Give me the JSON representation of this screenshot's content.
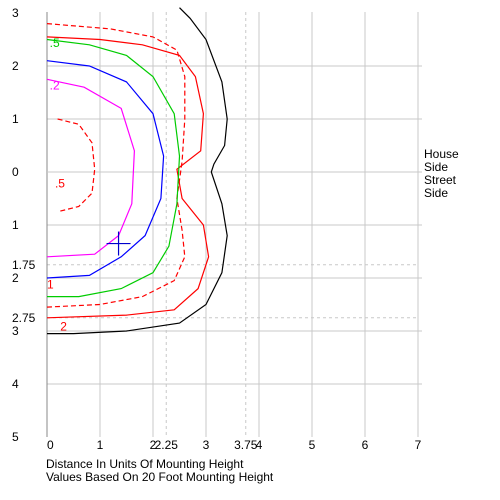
{
  "chart_data": {
    "type": "line",
    "title": "",
    "xlabel": "Distance In Units Of Mounting Height",
    "footnote": "Values Based On 20 Foot Mounting Height",
    "xlim": [
      0,
      7
    ],
    "ylim_top": 3,
    "ylim_bottom": 5,
    "x_ticks": [
      {
        "value": 0,
        "label": "0"
      },
      {
        "value": 1,
        "label": "1"
      },
      {
        "value": 2,
        "label": "2"
      },
      {
        "value": 2.25,
        "label": "2.25"
      },
      {
        "value": 3,
        "label": "3"
      },
      {
        "value": 3.75,
        "label": "3.75"
      },
      {
        "value": 4,
        "label": "4"
      },
      {
        "value": 5,
        "label": "5"
      },
      {
        "value": 6,
        "label": "6"
      },
      {
        "value": 7,
        "label": "7"
      }
    ],
    "y_ticks": [
      {
        "value": 3,
        "label": "3"
      },
      {
        "value": 2,
        "label": "2"
      },
      {
        "value": 1,
        "label": "1"
      },
      {
        "value": 0,
        "label": "0"
      },
      {
        "value": -1,
        "label": "1"
      },
      {
        "value": -1.75,
        "label": "1.75"
      },
      {
        "value": -2,
        "label": "2"
      },
      {
        "value": -2.75,
        "label": "2.75"
      },
      {
        "value": -3,
        "label": "3"
      },
      {
        "value": -4,
        "label": "4"
      },
      {
        "value": -5,
        "label": "5"
      }
    ],
    "grid": true,
    "side_labels": {
      "upper": [
        "House",
        "Side"
      ],
      "lower": [
        "Street",
        "Side"
      ]
    },
    "luminaire_position": {
      "x": 1.35,
      "y": -1.35
    },
    "contours": [
      {
        "label": "",
        "color": "#000000",
        "dashed": false,
        "label_at": null,
        "points": [
          [
            2.5,
            3.1
          ],
          [
            2.7,
            2.9
          ],
          [
            3.0,
            2.5
          ],
          [
            3.3,
            1.7
          ],
          [
            3.4,
            1.0
          ],
          [
            3.35,
            0.5
          ],
          [
            3.15,
            0.15
          ],
          [
            3.1,
            0
          ],
          [
            3.3,
            -0.6
          ],
          [
            3.4,
            -1.2
          ],
          [
            3.3,
            -1.9
          ],
          [
            3.0,
            -2.5
          ],
          [
            2.5,
            -2.85
          ],
          [
            1.5,
            -3.0
          ],
          [
            0.5,
            -3.05
          ],
          [
            0,
            -3.05
          ]
        ]
      },
      {
        "label": "1",
        "color": "#ff0000",
        "dashed": false,
        "label_at": [
          0,
          -2.1
        ],
        "points": [
          [
            0,
            2.55
          ],
          [
            1.0,
            2.5
          ],
          [
            1.8,
            2.4
          ],
          [
            2.5,
            2.2
          ],
          [
            2.8,
            1.8
          ],
          [
            2.95,
            1.1
          ],
          [
            2.9,
            0.4
          ],
          [
            2.45,
            0.05
          ],
          [
            2.55,
            -0.5
          ],
          [
            2.95,
            -1.0
          ],
          [
            3.05,
            -1.6
          ],
          [
            2.85,
            -2.2
          ],
          [
            2.4,
            -2.6
          ],
          [
            1.5,
            -2.7
          ],
          [
            0,
            -2.75
          ]
        ]
      },
      {
        "label": "2",
        "color": "#ff0000",
        "dashed": true,
        "label_at": [
          0.25,
          -2.9
        ],
        "points": [
          [
            0,
            2.8
          ],
          [
            1.2,
            2.7
          ],
          [
            2.0,
            2.55
          ],
          [
            2.45,
            2.3
          ],
          [
            2.6,
            1.8
          ],
          [
            2.6,
            1.0
          ],
          [
            2.55,
            0.2
          ],
          [
            2.45,
            -0.5
          ],
          [
            2.55,
            -1.1
          ],
          [
            2.6,
            -1.6
          ],
          [
            2.4,
            -2.05
          ],
          [
            1.8,
            -2.35
          ],
          [
            1.0,
            -2.5
          ],
          [
            0,
            -2.55
          ]
        ]
      },
      {
        "label": ".5",
        "color": "#00cc00",
        "dashed": false,
        "label_at": [
          0.05,
          2.45
        ],
        "points": [
          [
            0,
            2.5
          ],
          [
            0.8,
            2.4
          ],
          [
            1.5,
            2.2
          ],
          [
            2.0,
            1.8
          ],
          [
            2.4,
            1.1
          ],
          [
            2.5,
            0.3
          ],
          [
            2.45,
            -0.6
          ],
          [
            2.3,
            -1.4
          ],
          [
            2.0,
            -1.9
          ],
          [
            1.4,
            -2.2
          ],
          [
            0.6,
            -2.35
          ],
          [
            0,
            -2.35
          ]
        ]
      },
      {
        "label": "",
        "color": "#0000ff",
        "dashed": false,
        "label_at": null,
        "points": [
          [
            0,
            2.1
          ],
          [
            0.8,
            2.0
          ],
          [
            1.5,
            1.7
          ],
          [
            2.0,
            1.1
          ],
          [
            2.2,
            0.3
          ],
          [
            2.15,
            -0.5
          ],
          [
            1.85,
            -1.2
          ],
          [
            1.4,
            -1.6
          ],
          [
            0.8,
            -1.95
          ],
          [
            0,
            -2.0
          ]
        ]
      },
      {
        "label": ".2",
        "color": "#ff00ff",
        "dashed": false,
        "label_at": [
          0.05,
          1.65
        ],
        "points": [
          [
            0,
            1.75
          ],
          [
            0.7,
            1.6
          ],
          [
            1.4,
            1.2
          ],
          [
            1.65,
            0.4
          ],
          [
            1.6,
            -0.6
          ],
          [
            1.35,
            -1.2
          ],
          [
            0.9,
            -1.55
          ],
          [
            0,
            -1.6
          ]
        ]
      },
      {
        "label": ".5",
        "color": "#ff0000",
        "dashed": true,
        "label_at": [
          0.15,
          -0.2
        ],
        "points": [
          [
            0.2,
            1.0
          ],
          [
            0.6,
            0.9
          ],
          [
            0.85,
            0.55
          ],
          [
            0.9,
            0.05
          ],
          [
            0.85,
            -0.4
          ],
          [
            0.6,
            -0.65
          ],
          [
            0.2,
            -0.75
          ]
        ]
      }
    ]
  }
}
